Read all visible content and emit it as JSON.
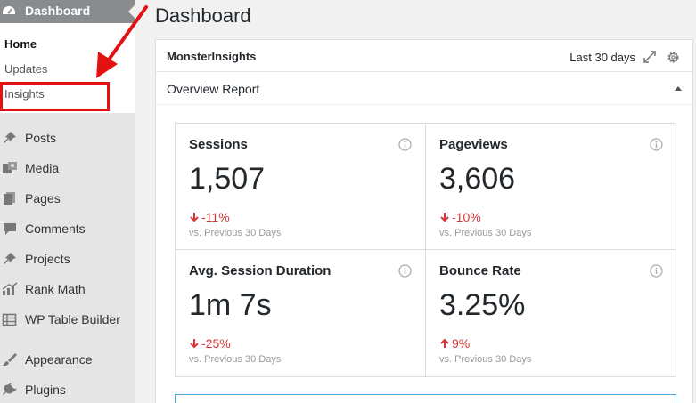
{
  "sidebar": {
    "top": {
      "label": "Dashboard",
      "icon": "dashboard-icon"
    },
    "submenu": [
      {
        "label": "Home",
        "current": true
      },
      {
        "label": "Updates",
        "current": false
      },
      {
        "label": "Insights",
        "current": false
      }
    ],
    "items": [
      {
        "label": "Posts",
        "icon": "pin-icon"
      },
      {
        "label": "Media",
        "icon": "media-icon"
      },
      {
        "label": "Pages",
        "icon": "pages-icon"
      },
      {
        "label": "Comments",
        "icon": "comment-icon"
      },
      {
        "label": "Projects",
        "icon": "pin-icon"
      },
      {
        "label": "Rank Math",
        "icon": "chart-icon"
      },
      {
        "label": "WP Table Builder",
        "icon": "table-icon"
      },
      {
        "label": "Appearance",
        "icon": "brush-icon"
      },
      {
        "label": "Plugins",
        "icon": "plug-icon"
      }
    ]
  },
  "page": {
    "title": "Dashboard"
  },
  "widget": {
    "title": "MonsterInsights",
    "range": "Last 30 days",
    "subtitle": "Overview Report",
    "stats": [
      {
        "label": "Sessions",
        "value": "1,507",
        "change": "-11%",
        "direction": "down",
        "compare": "vs. Previous 30 Days"
      },
      {
        "label": "Pageviews",
        "value": "3,606",
        "change": "-10%",
        "direction": "down",
        "compare": "vs. Previous 30 Days"
      },
      {
        "label": "Avg. Session Duration",
        "value": "1m 7s",
        "change": "-25%",
        "direction": "down",
        "compare": "vs. Previous 30 Days"
      },
      {
        "label": "Bounce Rate",
        "value": "3.25%",
        "change": "9%",
        "direction": "up",
        "compare": "vs. Previous 30 Days"
      }
    ]
  },
  "colors": {
    "highlight": "#e31212",
    "negative": "#d73638",
    "sidebar_active": "#888c8f"
  }
}
